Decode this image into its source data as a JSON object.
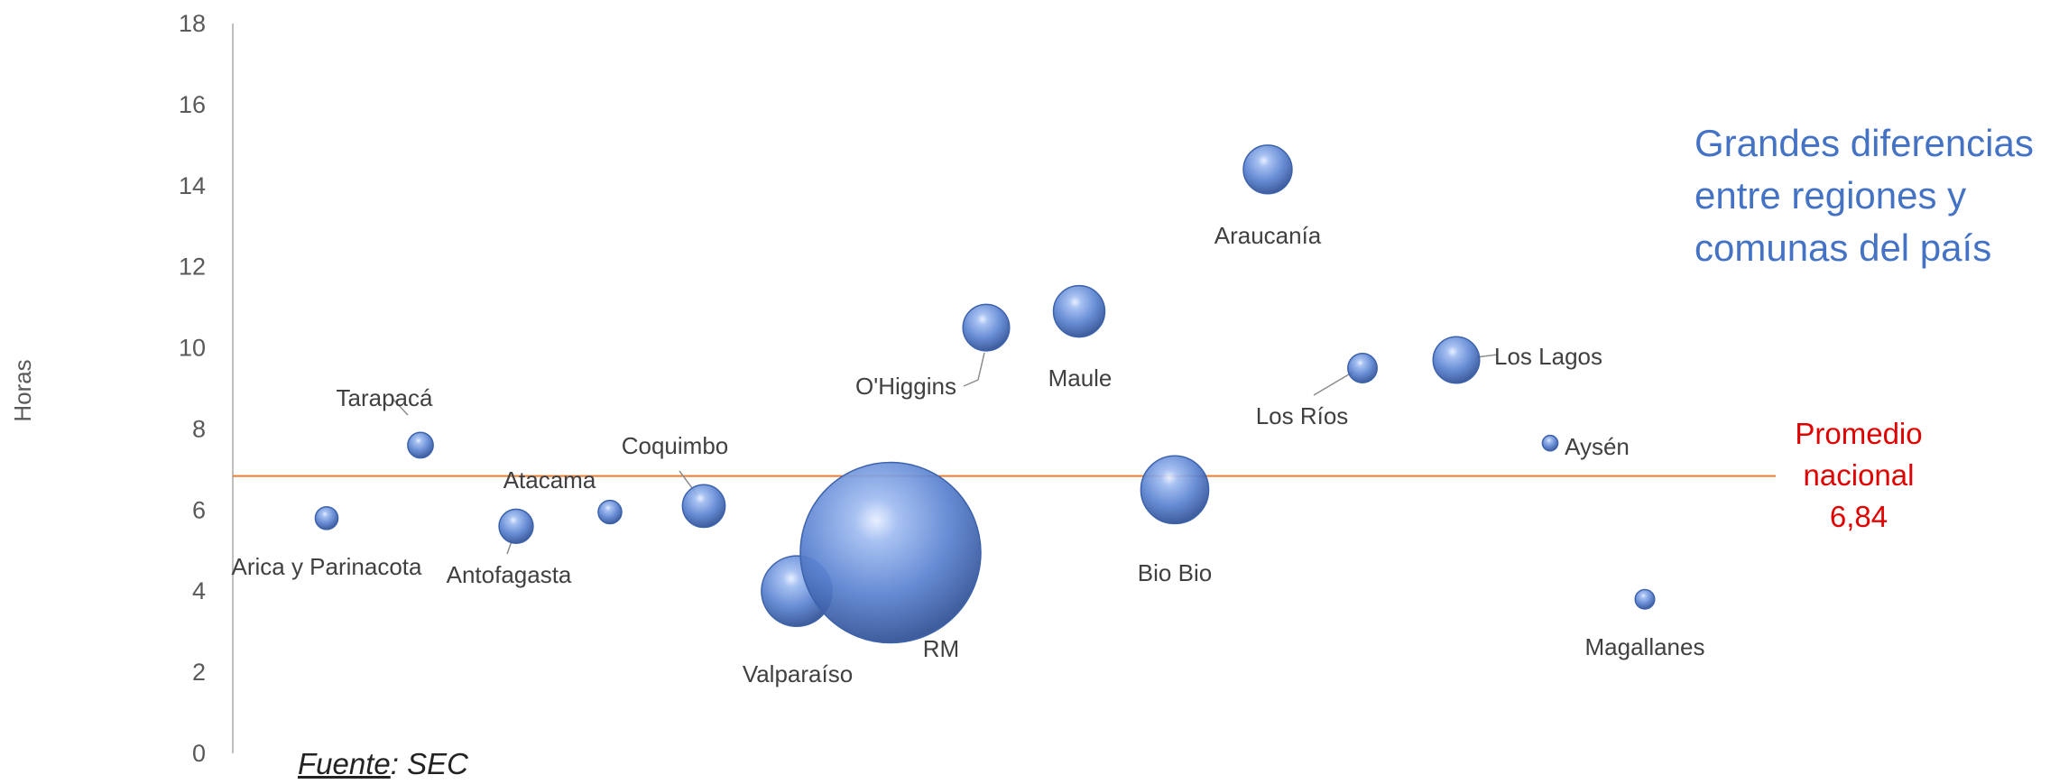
{
  "chart_data": {
    "type": "bubble",
    "ylabel": "Horas",
    "ylim": [
      0,
      18
    ],
    "yticks": [
      0,
      2,
      4,
      6,
      8,
      10,
      12,
      14,
      16,
      18
    ],
    "grid": false,
    "colors": {
      "bubble": "#5b83d1",
      "average_line": "#ed7d31",
      "annotation": "#4472c4",
      "average_text": "#e00000"
    },
    "average": {
      "value": 6.84,
      "label_lines": [
        "Promedio",
        "nacional",
        "6,84"
      ]
    },
    "points": [
      {
        "name": "Arica y Parinacota",
        "y": 5.8,
        "size": 1.5
      },
      {
        "name": "Tarapacá",
        "y": 7.6,
        "size": 1.9
      },
      {
        "name": "Antofagasta",
        "y": 5.6,
        "size": 3.4
      },
      {
        "name": "Atacama",
        "y": 5.95,
        "size": 1.6
      },
      {
        "name": "Coquimbo",
        "y": 6.1,
        "size": 5.3
      },
      {
        "name": "Valparaíso",
        "y": 4.0,
        "size": 14.5
      },
      {
        "name": "RM",
        "y": 4.95,
        "size": 95
      },
      {
        "name": "O'Higgins",
        "y": 10.5,
        "size": 6.3
      },
      {
        "name": "Maule",
        "y": 10.9,
        "size": 7.7
      },
      {
        "name": "Araucanía",
        "y": 14.4,
        "size": 6.9
      },
      {
        "name": "Bio Bio",
        "y": 6.5,
        "size": 13.4
      },
      {
        "name": "Los Ríos",
        "y": 9.5,
        "size": 2.5
      },
      {
        "name": "Los Lagos",
        "y": 9.7,
        "size": 6.3
      },
      {
        "name": "Aysén",
        "y": 7.65,
        "size": 0.7
      },
      {
        "name": "Magallanes",
        "y": 3.8,
        "size": 1.1
      }
    ]
  },
  "annotation_lines": [
    "Grandes diferencias",
    "entre regiones y",
    "comunas del país"
  ],
  "source": {
    "label": "Fuente",
    "rest": ": SEC"
  }
}
